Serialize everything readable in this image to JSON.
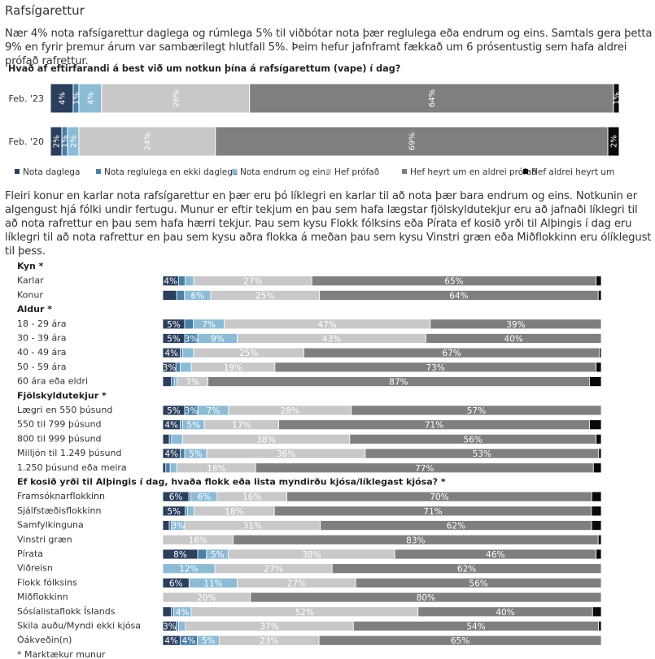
{
  "page_title": "Rafsígarettur",
  "intro_text": "Nær 4% nota rafsígarettur daglega og rúmlega 5% til viðbótar nota þær reglulega eða endrum og eins. Samtals gera þetta 9% en fyrir þremur árum var sambærilegt hlutfall 5%. Þeim hefur jafnframt fækkað um 6 prósentustig sem hafa aldrei prófað rafrettur.",
  "mid_text": "Fleiri konur en karlar nota rafsígarettur en þær eru þó líklegri en karlar til að nota þær bara endrum og eins. Notkunin er algengust hjá fólki undir fertugu. Munur er eftir tekjum en þau sem hafa lægstar fjölskyldutekjur eru að jafnaði líklegri til að nota rafrettur en þau sem hafa hærri tekjur. Þau sem kysu Flokk fólksins eða Pírata ef kosið yrði til Alþingis í dag eru líklegri til að nota rafrettur en þau sem kysu aðra flokka á meðan þau sem kysu Vinstri græn eða Miðflokkinn eru ólíklegust til þess.",
  "chart_data": [
    {
      "type": "bar",
      "orientation": "horizontal",
      "stacked": true,
      "title": "Hvað af eftirfarandi á best við um notkun þína á rafsígarettum (vape) í dag?",
      "legend_position": "bottom",
      "series": [
        {
          "name": "Nota daglega",
          "color": "#2b3f5c"
        },
        {
          "name": "Nota reglulega en ekki daglega",
          "color": "#4a7fa6"
        },
        {
          "name": "Nota endrum og eins",
          "color": "#8dbbd6"
        },
        {
          "name": "Hef prófað",
          "color": "#c8c8c8"
        },
        {
          "name": "Hef heyrt um en aldrei prófað",
          "color": "#7f7f7f"
        },
        {
          "name": "Hef aldrei heyrt um",
          "color": "#0a0a0a"
        }
      ],
      "categories": [
        "Feb. '23",
        "Feb. '20"
      ],
      "values": [
        [
          4,
          1,
          4,
          26,
          64,
          1
        ],
        [
          2,
          1,
          2,
          24,
          69,
          2
        ]
      ],
      "labels": [
        [
          "4%",
          "1%",
          "4%",
          "26%",
          "64%",
          "1%"
        ],
        [
          "2%",
          "1%",
          "2%",
          "24%",
          "69%",
          "2%"
        ]
      ]
    },
    {
      "type": "bar",
      "orientation": "horizontal",
      "stacked": true,
      "groups": [
        {
          "title": "Kyn *",
          "rows": [
            {
              "label": "Karlar",
              "values": [
                3.6,
                1.5,
                2,
                27,
                65,
                1.2
              ],
              "labels": [
                "4%",
                "",
                "",
                "27%",
                "65%",
                ""
              ]
            },
            {
              "label": "Konur",
              "values": [
                3.2,
                1.8,
                6,
                25,
                64,
                0.7
              ],
              "labels": [
                "",
                "",
                "6%",
                "25%",
                "64%",
                ""
              ]
            }
          ]
        },
        {
          "title": "Aldur *",
          "rows": [
            {
              "label": "18 - 29 ára",
              "values": [
                5,
                2,
                7,
                47,
                39,
                0
              ],
              "labels": [
                "5%",
                "",
                "7%",
                "47%",
                "39%",
                ""
              ]
            },
            {
              "label": "30 - 39 ára",
              "values": [
                5,
                3,
                9,
                43,
                40,
                0
              ],
              "labels": [
                "5%",
                "3%",
                "9%",
                "43%",
                "40%",
                ""
              ]
            },
            {
              "label": "40 - 49 ára",
              "values": [
                4,
                0.5,
                2.5,
                25,
                67,
                0.4
              ],
              "labels": [
                "4%",
                "",
                "",
                "25%",
                "67%",
                ""
              ]
            },
            {
              "label": "50 - 59 ára",
              "values": [
                3,
                1,
                2.5,
                19,
                73,
                1.2
              ],
              "labels": [
                "3%",
                "",
                "",
                "19%",
                "73%",
                ""
              ]
            },
            {
              "label": "60 ára eða eldri",
              "values": [
                2,
                0.6,
                0.7,
                7,
                87,
                2.7
              ],
              "labels": [
                "",
                "",
                "",
                "7%",
                "87%",
                ""
              ]
            }
          ]
        },
        {
          "title": "Fjölskyldutekjur *",
          "rows": [
            {
              "label": "Lægri en 550 þúsund",
              "values": [
                5,
                3,
                7,
                28,
                57,
                0
              ],
              "labels": [
                "5%",
                "3%",
                "7%",
                "28%",
                "57%",
                ""
              ]
            },
            {
              "label": "550 til 799 þúsund",
              "values": [
                4,
                0.5,
                5,
                17,
                71,
                2.7
              ],
              "labels": [
                "4%",
                "",
                "5%",
                "17%",
                "71%",
                ""
              ]
            },
            {
              "label": "800 til 999 þúsund",
              "values": [
                1.5,
                0.5,
                2.5,
                38,
                56,
                1.2
              ],
              "labels": [
                "",
                "",
                "",
                "38%",
                "56%",
                ""
              ]
            },
            {
              "label": "Milljón til 1.249 þúsund",
              "values": [
                4,
                1,
                5,
                36,
                53,
                0.6
              ],
              "labels": [
                "4%",
                "",
                "5%",
                "36%",
                "53%",
                ""
              ]
            },
            {
              "label": "1.250 þúsund eða meira",
              "values": [
                0.7,
                1,
                1.5,
                18,
                77,
                1.8
              ],
              "labels": [
                "",
                "",
                "",
                "18%",
                "77%",
                ""
              ]
            }
          ]
        },
        {
          "title": "Ef kosið yrði til Alþingis í dag, hvaða flokk eða lista myndirðu kjósa/líklegast kjósa? *",
          "rows": [
            {
              "label": "Framsóknarflokkinn",
              "values": [
                6,
                0.5,
                6,
                16,
                70,
                2.2
              ],
              "labels": [
                "6%",
                "",
                "6%",
                "16%",
                "70%",
                ""
              ]
            },
            {
              "label": "Sjálfstæðisflokkinn",
              "values": [
                5,
                0.5,
                1.5,
                18,
                71,
                2.2
              ],
              "labels": [
                "5%",
                "",
                "",
                "18%",
                "71%",
                ""
              ]
            },
            {
              "label": "Samfylkinguna",
              "values": [
                1.5,
                0.5,
                3,
                31,
                62,
                2.2
              ],
              "labels": [
                "",
                "",
                "3%",
                "31%",
                "62%",
                ""
              ]
            },
            {
              "label": "Vinstri græn",
              "values": [
                0,
                0,
                0,
                16,
                83,
                0.7
              ],
              "labels": [
                "",
                "",
                "",
                "16%",
                "83%",
                ""
              ]
            },
            {
              "label": "Pírata",
              "values": [
                8,
                2,
                5,
                38,
                46,
                1.2
              ],
              "labels": [
                "8%",
                "",
                "5%",
                "38%",
                "46%",
                ""
              ]
            },
            {
              "label": "Viðreisn",
              "values": [
                0,
                0,
                12,
                27,
                62,
                0
              ],
              "labels": [
                "",
                "",
                "12%",
                "27%",
                "62%",
                ""
              ]
            },
            {
              "label": "Flokk fólksins",
              "values": [
                6,
                0,
                11,
                27,
                56,
                0
              ],
              "labels": [
                "6%",
                "",
                "11%",
                "27%",
                "56%",
                ""
              ]
            },
            {
              "label": "Miðflokkinn",
              "values": [
                0,
                0,
                0,
                20,
                80,
                0
              ],
              "labels": [
                "",
                "",
                "",
                "20%",
                "80%",
                ""
              ]
            },
            {
              "label": "Sósíalistaflokk Íslands",
              "values": [
                2,
                0.5,
                4,
                52,
                40,
                2
              ],
              "labels": [
                "",
                "",
                "4%",
                "52%",
                "40%",
                ""
              ]
            },
            {
              "label": "Skila auðu/Myndi ekki kjósa",
              "values": [
                3,
                0.5,
                1.5,
                37,
                54,
                0.6
              ],
              "labels": [
                "3%",
                "",
                "",
                "37%",
                "54%",
                ""
              ]
            },
            {
              "label": "Óákveðin(n)",
              "values": [
                4,
                4,
                5,
                23,
                65,
                0
              ],
              "labels": [
                "4%",
                "4%",
                "5%",
                "23%",
                "65%",
                ""
              ]
            }
          ]
        }
      ],
      "footnote": "* Marktækur munur"
    }
  ]
}
